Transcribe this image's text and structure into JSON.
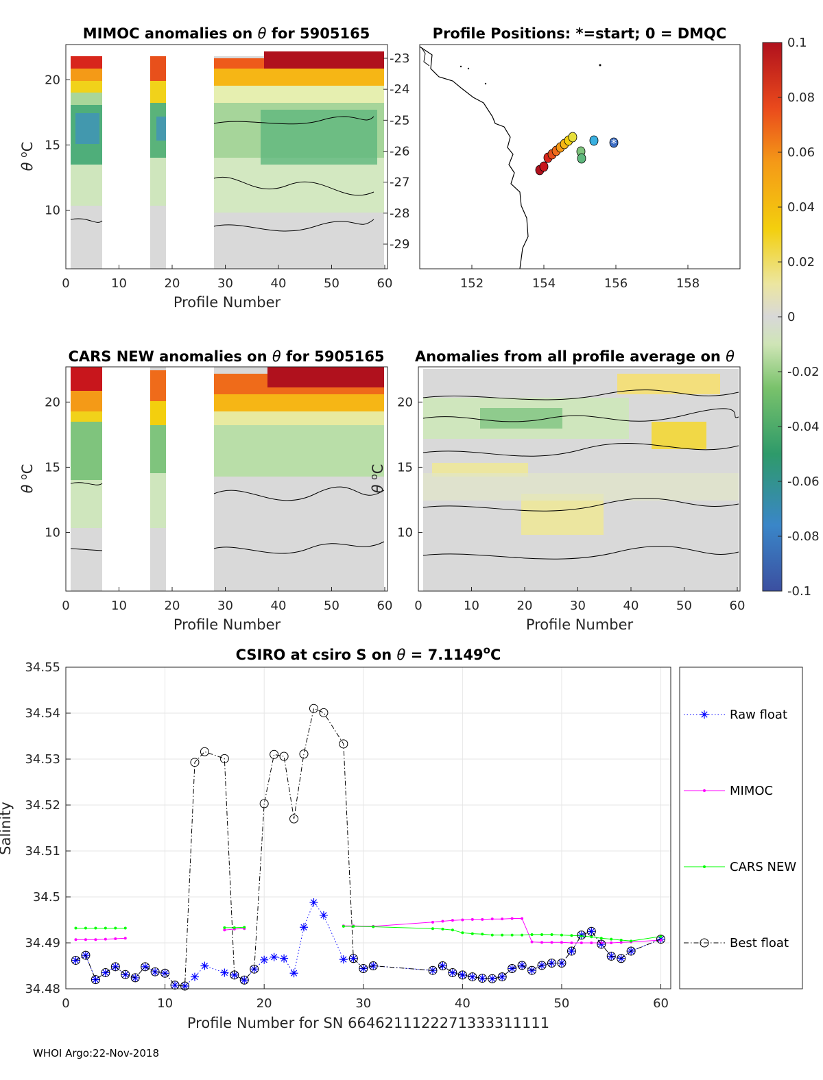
{
  "footer": "WHOI Argo:22-Nov-2018",
  "panels": {
    "mimoc": {
      "title_pre": "MIMOC anomalies on ",
      "title_sym": "θ",
      "title_post": "  for 5905165",
      "ylabel_sym": "θ",
      "ylabel_unit": "C",
      "ylabel_sup": "o",
      "xlabel": "Profile Number",
      "xticks": [
        "0",
        "10",
        "20",
        "30",
        "40",
        "50",
        "60"
      ],
      "yticks": [
        "10",
        "15",
        "20"
      ],
      "right_ticks": [
        "-23",
        "-24",
        "-25",
        "-26",
        "-27",
        "-28",
        "-29"
      ]
    },
    "positions": {
      "title": "Profile Positions: *=start; 0 = DMQC",
      "xticks": [
        "152",
        "154",
        "156",
        "158"
      ]
    },
    "cars": {
      "title_pre": "CARS NEW anomalies on ",
      "title_sym": "θ",
      "title_post": " for 5905165",
      "ylabel_sym": "θ",
      "ylabel_unit": "C",
      "ylabel_sup": "o",
      "xlabel": "Profile Number",
      "xticks": [
        "0",
        "10",
        "20",
        "30",
        "40",
        "50",
        "60"
      ],
      "yticks": [
        "10",
        "15",
        "20"
      ]
    },
    "avg": {
      "title_pre": "Anomalies from all profile average on ",
      "title_sym": "θ",
      "xlabel": "Profile Number",
      "xticks": [
        "0",
        "10",
        "20",
        "30",
        "40",
        "50",
        "60"
      ],
      "yticks": [
        "10",
        "15",
        "20"
      ]
    },
    "colorbar": {
      "ticks": [
        "0.1",
        "0.08",
        "0.06",
        "0.04",
        "0.02",
        "0",
        "-0.02",
        "-0.04",
        "-0.06",
        "-0.08",
        "-0.1"
      ]
    }
  },
  "chart_data": {
    "type": "line",
    "title_pre": "CSIRO at csiro S on ",
    "title_sym": "θ",
    "title_mid": " = 7.1149",
    "title_sup": "o",
    "title_post": "C",
    "xlabel": "Profile Number for SN 6646211122271333311111",
    "ylabel": "Salinity",
    "xlim": [
      0,
      61
    ],
    "ylim": [
      34.48,
      34.55
    ],
    "xticks": [
      0,
      10,
      20,
      30,
      40,
      50,
      60
    ],
    "yticks": [
      34.48,
      34.49,
      34.5,
      34.51,
      34.52,
      34.53,
      34.54,
      34.55
    ],
    "ytick_labels": [
      "34.48",
      "34.49",
      "34.5",
      "34.51",
      "34.52",
      "34.53",
      "34.54",
      "34.55"
    ],
    "grid": true,
    "legend_position": "outside-right",
    "series": [
      {
        "name": "Raw float",
        "color": "#0000ff",
        "style": "dotted",
        "marker": "asterisk",
        "segments": [
          [
            [
              1,
              34.4862
            ],
            [
              2,
              34.4873
            ],
            [
              3,
              34.482
            ],
            [
              4,
              34.4835
            ],
            [
              5,
              34.4848
            ],
            [
              6,
              34.4831
            ],
            [
              7,
              34.4824
            ],
            [
              8,
              34.4848
            ],
            [
              9,
              34.4837
            ],
            [
              10,
              34.4834
            ],
            [
              11,
              34.4808
            ],
            [
              12,
              34.4806
            ],
            [
              13,
              34.4826
            ],
            [
              14,
              34.485
            ],
            [
              16,
              34.4835
            ],
            [
              17,
              34.483
            ],
            [
              18,
              34.4819
            ],
            [
              19,
              34.4843
            ],
            [
              20,
              34.4863
            ],
            [
              21,
              34.4869
            ],
            [
              22,
              34.4866
            ],
            [
              23,
              34.4834
            ],
            [
              24,
              34.4934
            ],
            [
              25,
              34.4988
            ],
            [
              26,
              34.496
            ],
            [
              28,
              34.4864
            ],
            [
              29,
              34.4866
            ],
            [
              30,
              34.4844
            ],
            [
              31,
              34.485
            ],
            [
              37,
              34.484
            ],
            [
              38,
              34.485
            ],
            [
              39,
              34.4835
            ],
            [
              40,
              34.483
            ],
            [
              41,
              34.4826
            ],
            [
              42,
              34.4823
            ],
            [
              43,
              34.4822
            ],
            [
              44,
              34.4826
            ],
            [
              45,
              34.4844
            ],
            [
              46,
              34.4851
            ],
            [
              47,
              34.484
            ],
            [
              48,
              34.4851
            ],
            [
              49,
              34.4856
            ],
            [
              50,
              34.4856
            ],
            [
              51,
              34.4882
            ],
            [
              52,
              34.4917
            ],
            [
              53,
              34.4925
            ],
            [
              54,
              34.4897
            ],
            [
              55,
              34.4871
            ],
            [
              56,
              34.4866
            ],
            [
              57,
              34.4882
            ],
            [
              60,
              34.4908
            ]
          ]
        ]
      },
      {
        "name": "MIMOC",
        "color": "#ff00ff",
        "style": "solid",
        "marker": "dot",
        "segments": [
          [
            [
              1,
              34.4907
            ],
            [
              2,
              34.4907
            ],
            [
              3,
              34.4907
            ],
            [
              4,
              34.4908
            ],
            [
              5,
              34.4909
            ],
            [
              6,
              34.491
            ]
          ],
          [
            [
              16,
              34.4928
            ],
            [
              17,
              34.493
            ],
            [
              18,
              34.4931
            ]
          ],
          [
            [
              28,
              34.4937
            ],
            [
              29,
              34.4937
            ],
            [
              31,
              34.4936
            ],
            [
              37,
              34.4945
            ],
            [
              38,
              34.4947
            ],
            [
              39,
              34.4949
            ],
            [
              40,
              34.495
            ],
            [
              41,
              34.4951
            ],
            [
              42,
              34.4951
            ],
            [
              43,
              34.4952
            ],
            [
              44,
              34.4952
            ],
            [
              45,
              34.4953
            ],
            [
              46,
              34.4953
            ],
            [
              47,
              34.4902
            ],
            [
              48,
              34.4901
            ],
            [
              49,
              34.4901
            ],
            [
              50,
              34.4901
            ],
            [
              51,
              34.49
            ],
            [
              52,
              34.49
            ],
            [
              53,
              34.49
            ],
            [
              54,
              34.49
            ],
            [
              55,
              34.49
            ],
            [
              56,
              34.4901
            ],
            [
              57,
              34.4902
            ],
            [
              60,
              34.4906
            ]
          ]
        ]
      },
      {
        "name": "CARS NEW",
        "color": "#00ff00",
        "style": "solid",
        "marker": "dot",
        "segments": [
          [
            [
              1,
              34.4932
            ],
            [
              2,
              34.4932
            ],
            [
              3,
              34.4932
            ],
            [
              4,
              34.4932
            ],
            [
              5,
              34.4932
            ],
            [
              6,
              34.4932
            ]
          ],
          [
            [
              16,
              34.4933
            ],
            [
              17,
              34.4933
            ],
            [
              18,
              34.4934
            ]
          ],
          [
            [
              28,
              34.4936
            ],
            [
              29,
              34.4936
            ],
            [
              31,
              34.4935
            ],
            [
              37,
              34.4931
            ],
            [
              38,
              34.493
            ],
            [
              39,
              34.4928
            ],
            [
              40,
              34.4922
            ],
            [
              41,
              34.492
            ],
            [
              42,
              34.4919
            ],
            [
              43,
              34.4917
            ],
            [
              44,
              34.4917
            ],
            [
              45,
              34.4917
            ],
            [
              46,
              34.4917
            ],
            [
              47,
              34.4918
            ],
            [
              48,
              34.4918
            ],
            [
              49,
              34.4918
            ],
            [
              50,
              34.4917
            ],
            [
              51,
              34.4916
            ],
            [
              52,
              34.4915
            ],
            [
              53,
              34.4913
            ],
            [
              54,
              34.491
            ],
            [
              55,
              34.4908
            ],
            [
              56,
              34.4906
            ],
            [
              57,
              34.4904
            ],
            [
              60,
              34.4914
            ]
          ]
        ]
      },
      {
        "name": "Best float",
        "color": "#000000",
        "style": "dashdot",
        "marker": "circle",
        "segments": [
          [
            [
              1,
              34.4862
            ],
            [
              2,
              34.4873
            ],
            [
              3,
              34.482
            ],
            [
              4,
              34.4835
            ],
            [
              5,
              34.4848
            ],
            [
              6,
              34.4831
            ],
            [
              7,
              34.4824
            ],
            [
              8,
              34.4848
            ],
            [
              9,
              34.4837
            ],
            [
              10,
              34.4834
            ],
            [
              11,
              34.4808
            ],
            [
              12,
              34.4806
            ],
            [
              13,
              34.5293
            ],
            [
              14,
              34.5316
            ],
            [
              16,
              34.5301
            ],
            [
              17,
              34.483
            ],
            [
              18,
              34.4819
            ],
            [
              19,
              34.4843
            ],
            [
              20,
              34.5203
            ],
            [
              21,
              34.531
            ],
            [
              22,
              34.5306
            ],
            [
              23,
              34.517
            ],
            [
              24,
              34.5311
            ],
            [
              25,
              34.541
            ],
            [
              26,
              34.5401
            ],
            [
              28,
              34.5333
            ],
            [
              29,
              34.4866
            ],
            [
              30,
              34.4844
            ],
            [
              31,
              34.485
            ],
            [
              37,
              34.484
            ],
            [
              38,
              34.485
            ],
            [
              39,
              34.4835
            ],
            [
              40,
              34.483
            ],
            [
              41,
              34.4826
            ],
            [
              42,
              34.4823
            ],
            [
              43,
              34.4822
            ],
            [
              44,
              34.4826
            ],
            [
              45,
              34.4844
            ],
            [
              46,
              34.4851
            ],
            [
              47,
              34.484
            ],
            [
              48,
              34.4851
            ],
            [
              49,
              34.4856
            ],
            [
              50,
              34.4856
            ],
            [
              51,
              34.4882
            ],
            [
              52,
              34.4917
            ],
            [
              53,
              34.4925
            ],
            [
              54,
              34.4897
            ],
            [
              55,
              34.4871
            ],
            [
              56,
              34.4866
            ],
            [
              57,
              34.4882
            ],
            [
              60,
              34.4908
            ]
          ]
        ]
      }
    ]
  }
}
